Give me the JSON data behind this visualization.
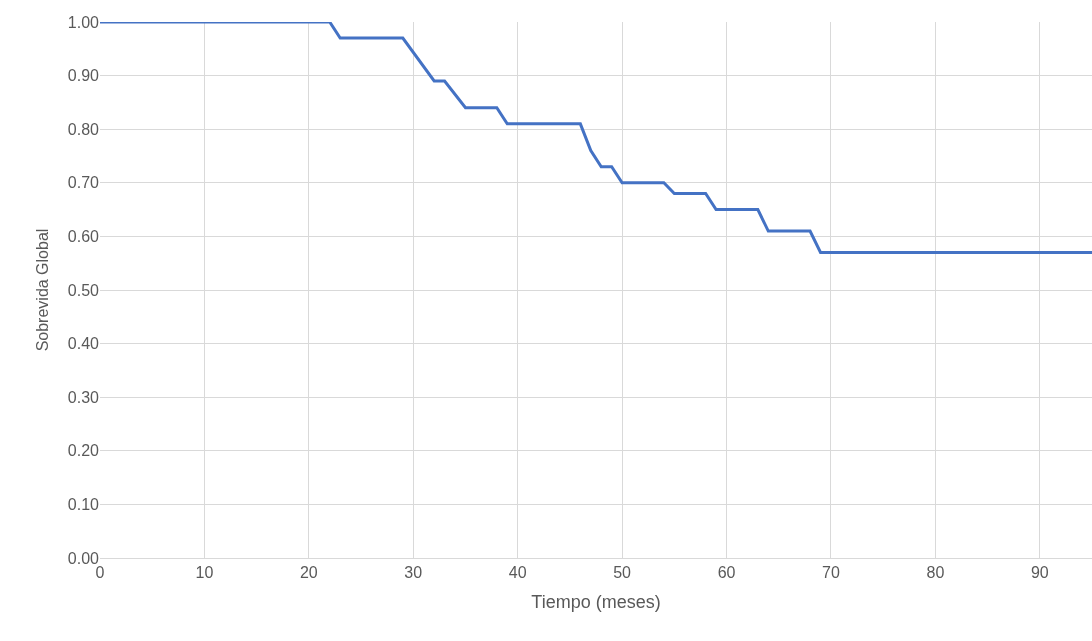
{
  "chart_data": {
    "type": "line",
    "xlabel": "Tiempo (meses)",
    "ylabel": "Sobrevida Global",
    "x": [
      0,
      22,
      23,
      29,
      32,
      33,
      35,
      38,
      39,
      46,
      47,
      48,
      49,
      50,
      54,
      55,
      58,
      59,
      63,
      64,
      68,
      69,
      95
    ],
    "series": [
      {
        "color": "#4472c4",
        "values": [
          1.0,
          1.0,
          0.97,
          0.97,
          0.89,
          0.89,
          0.84,
          0.84,
          0.81,
          0.81,
          0.76,
          0.73,
          0.73,
          0.7,
          0.7,
          0.68,
          0.68,
          0.65,
          0.65,
          0.61,
          0.61,
          0.57,
          0.57
        ]
      }
    ],
    "xlim": [
      0,
      95
    ],
    "xticks": [
      0,
      10,
      20,
      30,
      40,
      50,
      60,
      70,
      80,
      90
    ],
    "ylim": [
      0,
      1
    ],
    "yticks": [
      {
        "value": 0,
        "label": "0.00"
      },
      {
        "value": 0.1,
        "label": "0.10"
      },
      {
        "value": 0.2,
        "label": "0.20"
      },
      {
        "value": 0.3,
        "label": "0.30"
      },
      {
        "value": 0.4,
        "label": "0.40"
      },
      {
        "value": 0.5,
        "label": "0.50"
      },
      {
        "value": 0.6,
        "label": "0.60"
      },
      {
        "value": 0.7,
        "label": "0.70"
      },
      {
        "value": 0.8,
        "label": "0.80"
      },
      {
        "value": 0.9,
        "label": "0.90"
      },
      {
        "value": 1.0,
        "label": "1.00"
      }
    ],
    "grid": true,
    "marker": "none",
    "line_style": "solid"
  }
}
